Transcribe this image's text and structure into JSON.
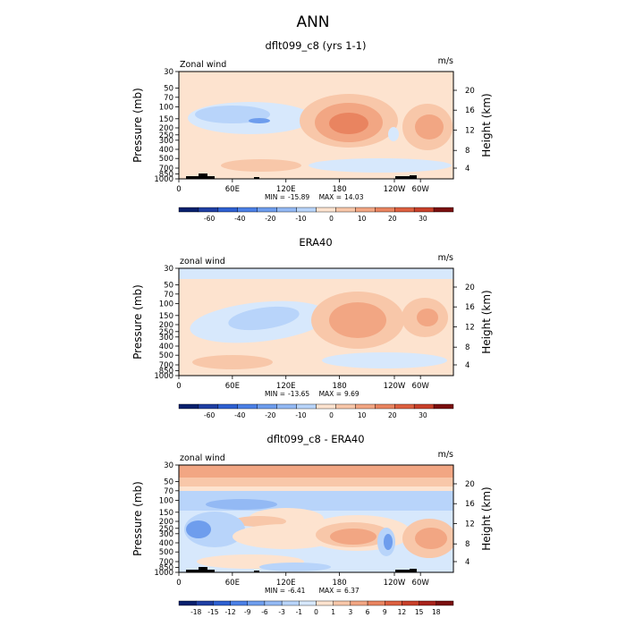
{
  "main_title": "ANN",
  "colors": {
    "neg": [
      "#08206d",
      "#1f3fa3",
      "#2e60d1",
      "#4b80e6",
      "#6e9ded",
      "#93b9f4",
      "#b8d4fa",
      "#d7e8fc"
    ],
    "pos": [
      "#fde3cf",
      "#f8c7a9",
      "#f2a683",
      "#e98460",
      "#dd6040",
      "#c8402a",
      "#a9241c",
      "#7a0f0f"
    ],
    "topo": "#000000"
  },
  "chart_data": [
    {
      "type": "heatmap",
      "title": "dflt099_c8 (yrs 1-1)",
      "top_left_label": "Zonal wind",
      "top_right_label": "m/s",
      "ylabel_left": "Pressure (mb)",
      "ylabel_right": "Height (km)",
      "y_ticks": [
        "30",
        "50",
        "70",
        "100",
        "150",
        "200",
        "250",
        "300",
        "400",
        "500",
        "700",
        "850",
        "1000"
      ],
      "y_right_ticks": [
        "20",
        "16",
        "12",
        "8",
        "4"
      ],
      "x_ticks": [
        "0",
        "60E",
        "120E",
        "180",
        "120W",
        "60W"
      ],
      "min_label": "MIN =",
      "min_value": "-15.89",
      "max_label": "MAX =",
      "max_value": "14.03",
      "colorbar_labels": [
        "-60",
        "-40",
        "-20",
        "-10",
        "0",
        "10",
        "20",
        "30"
      ]
    },
    {
      "type": "heatmap",
      "title": "ERA40",
      "top_left_label": "zonal wind",
      "top_right_label": "m/s",
      "ylabel_left": "Pressure (mb)",
      "ylabel_right": "Height (km)",
      "y_ticks": [
        "30",
        "50",
        "70",
        "100",
        "150",
        "200",
        "250",
        "300",
        "400",
        "500",
        "700",
        "850",
        "1000"
      ],
      "y_right_ticks": [
        "20",
        "16",
        "12",
        "8",
        "4"
      ],
      "x_ticks": [
        "0",
        "60E",
        "120E",
        "180",
        "120W",
        "60W"
      ],
      "min_label": "MIN =",
      "min_value": "-13.65",
      "max_label": "MAX =",
      "max_value": "9.69",
      "colorbar_labels": [
        "-60",
        "-40",
        "-20",
        "-10",
        "0",
        "10",
        "20",
        "30"
      ]
    },
    {
      "type": "heatmap",
      "title": "dflt099_c8 - ERA40",
      "top_left_label": "zonal wind",
      "top_right_label": "m/s",
      "ylabel_left": "Pressure (mb)",
      "ylabel_right": "Height (km)",
      "y_ticks": [
        "30",
        "50",
        "70",
        "100",
        "150",
        "200",
        "250",
        "300",
        "400",
        "500",
        "700",
        "850",
        "1000"
      ],
      "y_right_ticks": [
        "20",
        "16",
        "12",
        "8",
        "4"
      ],
      "x_ticks": [
        "0",
        "60E",
        "120E",
        "180",
        "120W",
        "60W"
      ],
      "min_label": "MIN =",
      "min_value": "-6.41",
      "max_label": "MAX =",
      "max_value": "6.37",
      "colorbar_labels": [
        "-18",
        "-15",
        "-12",
        "-9",
        "-6",
        "-3",
        "-1",
        "0",
        "1",
        "3",
        "6",
        "9",
        "12",
        "15",
        "18"
      ]
    }
  ]
}
